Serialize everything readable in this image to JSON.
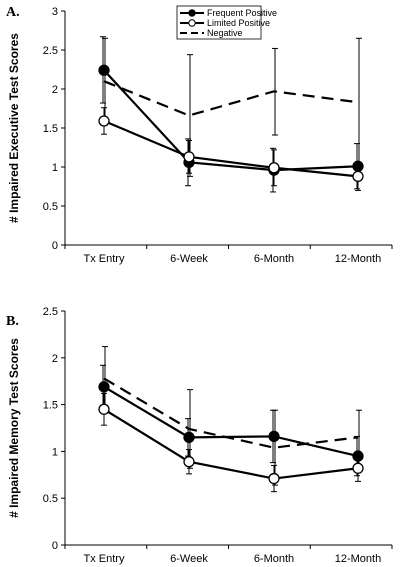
{
  "chart_data": [
    {
      "panel_label": "A.",
      "type": "line",
      "ylabel": "# Impaired Executive Test Scores",
      "categories": [
        "Tx Entry",
        "6-Week",
        "6-Month",
        "12-Month"
      ],
      "ylim": [
        0,
        3
      ],
      "yticks": [
        "0",
        "0.5",
        "1",
        "1.5",
        "2",
        "2.5",
        "3"
      ],
      "legend": "top-center",
      "series": [
        {
          "name": "Frequent Positive",
          "style": "solid-filled",
          "values": [
            2.24,
            1.06,
            0.96,
            1.01
          ],
          "err_low": [
            1.82,
            0.76,
            0.68,
            0.72
          ],
          "err_high": [
            2.67,
            1.36,
            1.24,
            1.3
          ]
        },
        {
          "name": "Limited Positive",
          "style": "solid-open",
          "values": [
            1.59,
            1.13,
            0.99,
            0.88
          ],
          "err_low": [
            1.42,
            0.92,
            0.76,
            0.7
          ],
          "err_high": [
            1.76,
            1.34,
            1.22,
            1.06
          ]
        },
        {
          "name": "Negative",
          "style": "dashed",
          "values": [
            2.1,
            1.66,
            1.97,
            1.83
          ],
          "err_low": [
            1.54,
            0.88,
            1.41,
            1.0
          ],
          "err_high": [
            2.65,
            2.44,
            2.52,
            2.65
          ]
        }
      ]
    },
    {
      "panel_label": "B.",
      "type": "line",
      "ylabel": "# Impaired Memory Test Scores",
      "categories": [
        "Tx Entry",
        "6-Week",
        "6-Month",
        "12-Month"
      ],
      "ylim": [
        0,
        2.5
      ],
      "yticks": [
        "0",
        "0.5",
        "1",
        "1.5",
        "2",
        "2.5"
      ],
      "legend": "none",
      "series": [
        {
          "name": "Frequent Positive",
          "style": "solid-filled",
          "values": [
            1.69,
            1.15,
            1.16,
            0.95
          ],
          "err_low": [
            1.45,
            0.95,
            0.88,
            0.74
          ],
          "err_high": [
            1.92,
            1.35,
            1.44,
            1.16
          ]
        },
        {
          "name": "Limited Positive",
          "style": "solid-open",
          "values": [
            1.45,
            0.89,
            0.71,
            0.82
          ],
          "err_low": [
            1.28,
            0.76,
            0.57,
            0.68
          ],
          "err_high": [
            1.62,
            1.02,
            0.85,
            0.97
          ]
        },
        {
          "name": "Negative",
          "style": "dashed",
          "values": [
            1.78,
            1.24,
            1.04,
            1.15
          ],
          "err_low": [
            1.45,
            0.82,
            0.64,
            0.86
          ],
          "err_high": [
            2.12,
            1.66,
            1.44,
            1.44
          ]
        }
      ]
    }
  ]
}
